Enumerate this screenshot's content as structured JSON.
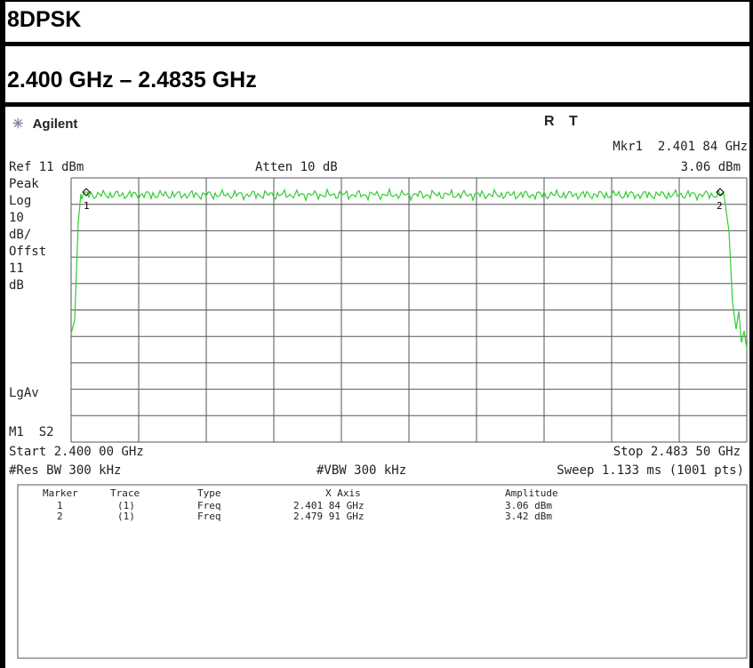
{
  "header": {
    "mode": "8DPSK",
    "range": "2.400 GHz – 2.4835 GHz"
  },
  "analyzer": {
    "brand": "Agilent",
    "status": [
      "R",
      "T"
    ],
    "marker_readout": {
      "freq": "Mkr1  2.401 84 GHz",
      "amplitude": "3.06 dBm"
    },
    "ref": "Ref 11 dBm",
    "atten": "Atten 10 dB",
    "side_labels": [
      "Peak",
      "Log",
      "10",
      "dB/",
      "Offst",
      "11",
      "dB"
    ],
    "detector": "LgAv",
    "marker_state": "M1  S2",
    "plot_markers": [
      "1",
      "2"
    ],
    "start": "Start 2.400 00 GHz",
    "stop": "Stop 2.483 50 GHz",
    "res_bw": "#Res BW 300 kHz",
    "vbw": "#VBW 300 kHz",
    "sweep": "Sweep 1.133 ms (1001 pts)",
    "table": {
      "columns": [
        "Marker",
        "Trace",
        "Type",
        "X Axis",
        "Amplitude"
      ],
      "rows": [
        [
          "1",
          "(1)",
          "Freq",
          "2.401 84 GHz",
          "3.06 dBm"
        ],
        [
          "2",
          "(1)",
          "Freq",
          "2.479 91 GHz",
          "3.42 dBm"
        ]
      ]
    }
  }
}
